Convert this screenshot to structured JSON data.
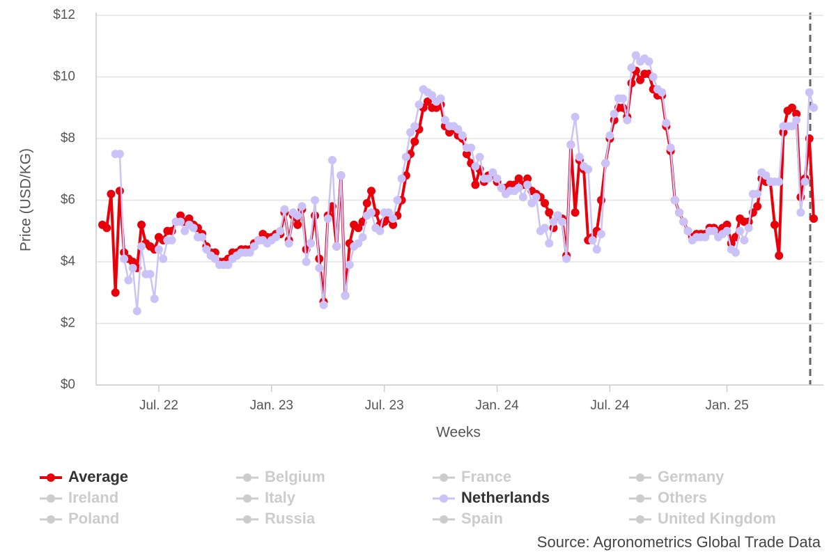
{
  "chart_data": {
    "type": "line",
    "x_label": "Weeks",
    "y_label": "Price (USD/KG)",
    "source": "Source: Agronometrics Global Trade Data",
    "ylim": [
      0,
      12
    ],
    "yticks": [
      {
        "value": 0,
        "label": "$0"
      },
      {
        "value": 2,
        "label": "$2"
      },
      {
        "value": 4,
        "label": "$4"
      },
      {
        "value": 6,
        "label": "$6"
      },
      {
        "value": 8,
        "label": "$8"
      },
      {
        "value": 10,
        "label": "$10"
      },
      {
        "value": 12,
        "label": "$12"
      }
    ],
    "grid": true,
    "categories": [
      null,
      null,
      null,
      null,
      null,
      null,
      null,
      null,
      null,
      null,
      null,
      null,
      null,
      "Jul. 22",
      null,
      null,
      null,
      null,
      null,
      null,
      null,
      null,
      null,
      null,
      null,
      null,
      null,
      null,
      null,
      null,
      null,
      null,
      null,
      null,
      null,
      null,
      null,
      null,
      null,
      "Jan. 23",
      null,
      null,
      null,
      null,
      null,
      null,
      null,
      null,
      null,
      null,
      null,
      null,
      null,
      null,
      null,
      null,
      null,
      null,
      null,
      null,
      null,
      null,
      null,
      null,
      null,
      "Jul. 23",
      null,
      null,
      null,
      null,
      null,
      null,
      null,
      null,
      null,
      null,
      null,
      null,
      null,
      null,
      null,
      null,
      null,
      null,
      null,
      null,
      null,
      null,
      null,
      null,
      null,
      "Jan. 24",
      null,
      null,
      null,
      null,
      null,
      null,
      null,
      null,
      null,
      null,
      null,
      null,
      null,
      null,
      null,
      null,
      null,
      null,
      null,
      null,
      null,
      null,
      null,
      null,
      null,
      "Jul. 24",
      null,
      null,
      null,
      null,
      null,
      null,
      null,
      null,
      null,
      null,
      null,
      null,
      null,
      null,
      null,
      null,
      null,
      null,
      null,
      null,
      null,
      null,
      null,
      null,
      null,
      null,
      "Jan. 25",
      null,
      null,
      null,
      null,
      null,
      null,
      null,
      null,
      null,
      null,
      null,
      null,
      null,
      null,
      null,
      null,
      null,
      null,
      null,
      null
    ],
    "series": [
      {
        "name": "Average",
        "color": "#e8000b",
        "visible": true,
        "values": [
          5.2,
          5.1,
          6.2,
          3.0,
          6.3,
          4.3,
          4.1,
          4.0,
          3.8,
          5.2,
          4.6,
          4.5,
          4.4,
          4.8,
          4.7,
          5.0,
          5.0,
          5.3,
          5.5,
          5.3,
          5.4,
          5.2,
          5.1,
          4.9,
          4.5,
          4.3,
          4.3,
          4.0,
          4.0,
          4.1,
          4.3,
          4.3,
          4.4,
          4.4,
          4.4,
          4.6,
          4.7,
          4.9,
          4.8,
          4.8,
          4.9,
          4.9,
          5.6,
          4.7,
          5.5,
          5.2,
          5.7,
          4.4,
          4.6,
          5.5,
          4.1,
          2.7,
          5.5,
          5.8,
          4.5,
          6.8,
          2.9,
          4.6,
          5.2,
          5.1,
          5.3,
          5.9,
          6.3,
          5.6,
          5.2,
          5.3,
          5.4,
          5.2,
          5.5,
          6.0,
          6.8,
          7.5,
          7.9,
          8.3,
          9.0,
          9.2,
          9.0,
          9.0,
          9.1,
          8.4,
          8.2,
          8.3,
          8.1,
          8.0,
          7.5,
          7.2,
          6.5,
          7.0,
          6.6,
          6.8,
          6.8,
          6.6,
          6.4,
          6.4,
          6.5,
          6.5,
          6.7,
          6.5,
          6.7,
          6.3,
          6.2,
          6.1,
          5.9,
          5.6,
          5.1,
          5.5,
          5.4,
          4.2,
          7.8,
          5.6,
          7.3,
          7.0,
          4.7,
          4.8,
          5.0,
          6.0,
          7.2,
          8.0,
          8.6,
          9.0,
          9.0,
          8.7,
          9.8,
          10.2,
          9.9,
          10.1,
          10.1,
          9.6,
          9.4,
          9.4,
          8.4,
          7.6,
          6.0,
          5.6,
          5.3,
          5.0,
          4.8,
          4.9,
          4.9,
          4.9,
          5.1,
          5.1,
          5.0,
          5.1,
          5.2,
          4.6,
          4.8,
          5.4,
          5.3,
          5.3,
          5.6,
          5.8,
          6.7,
          6.6,
          6.6,
          5.2,
          4.2,
          8.2,
          8.9,
          9.0,
          8.8,
          6.1,
          6.7,
          8.0,
          5.4
        ]
      },
      {
        "name": "Belgium",
        "visible": false
      },
      {
        "name": "France",
        "visible": false
      },
      {
        "name": "Germany",
        "visible": false
      },
      {
        "name": "Ireland",
        "visible": false
      },
      {
        "name": "Italy",
        "visible": false
      },
      {
        "name": "Netherlands",
        "color": "#cbc3f7",
        "visible": true,
        "values": [
          null,
          null,
          null,
          7.5,
          7.5,
          4.1,
          3.4,
          3.8,
          2.4,
          4.5,
          3.6,
          3.6,
          2.8,
          4.4,
          4.1,
          4.7,
          4.7,
          5.3,
          5.3,
          5.0,
          5.2,
          5.1,
          4.8,
          4.8,
          4.4,
          4.2,
          4.1,
          3.9,
          3.9,
          3.9,
          4.1,
          4.2,
          4.3,
          4.3,
          4.3,
          4.5,
          4.7,
          4.7,
          4.6,
          4.7,
          4.8,
          5.0,
          5.7,
          4.6,
          5.6,
          5.5,
          5.8,
          4.0,
          4.6,
          6.0,
          3.8,
          2.6,
          5.4,
          7.3,
          4.5,
          6.8,
          2.9,
          3.9,
          4.5,
          4.6,
          4.8,
          5.5,
          5.6,
          5.1,
          5.0,
          5.6,
          5.6,
          5.4,
          6.0,
          6.7,
          7.4,
          8.2,
          8.4,
          9.1,
          9.6,
          9.5,
          9.4,
          9.2,
          9.3,
          8.6,
          8.4,
          8.4,
          8.3,
          8.1,
          7.7,
          7.7,
          7.1,
          7.4,
          6.7,
          6.7,
          6.9,
          6.7,
          6.4,
          6.2,
          6.3,
          6.3,
          6.4,
          6.1,
          6.5,
          5.9,
          6.1,
          5.0,
          5.1,
          4.6,
          5.3,
          5.5,
          5.3,
          4.1,
          7.8,
          8.7,
          7.4,
          7.1,
          7.0,
          4.7,
          4.4,
          4.9,
          7.2,
          8.1,
          8.8,
          9.3,
          9.3,
          8.6,
          10.3,
          10.7,
          10.5,
          10.6,
          10.5,
          10.0,
          9.6,
          9.5,
          8.5,
          7.7,
          6.0,
          5.6,
          5.3,
          5.0,
          4.7,
          4.8,
          4.8,
          4.8,
          5.0,
          5.0,
          4.8,
          4.9,
          5.0,
          4.4,
          4.3,
          5.0,
          4.7,
          5.1,
          6.2,
          6.2,
          6.9,
          6.8,
          6.6,
          6.6,
          6.6,
          8.4,
          8.4,
          8.4,
          8.6,
          5.6,
          6.6,
          9.5,
          9.0
        ]
      },
      {
        "name": "Others",
        "visible": false
      },
      {
        "name": "Poland",
        "visible": false
      },
      {
        "name": "Russia",
        "visible": false
      },
      {
        "name": "Spain",
        "visible": false
      },
      {
        "name": "United Kingdom",
        "visible": false
      }
    ]
  }
}
